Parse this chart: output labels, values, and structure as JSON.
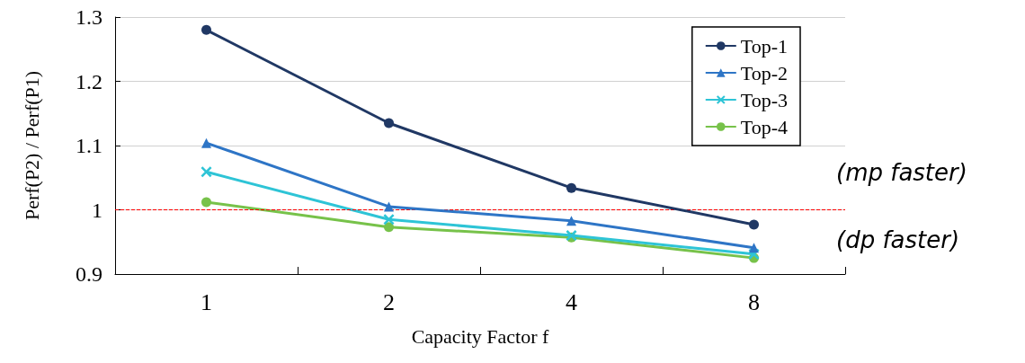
{
  "chart_data": {
    "type": "line",
    "categories": [
      "1",
      "2",
      "4",
      "8"
    ],
    "xlabel": "Capacity Factor f",
    "ylabel": "Perf(P2) / Perf(P1)",
    "ylim": [
      0.9,
      1.3
    ],
    "yticks": [
      0.9,
      1,
      1.1,
      1.2,
      1.3
    ],
    "grid": "y",
    "legend": "top right",
    "series": [
      {
        "name": "Top-1",
        "color": "#203864",
        "marker": "circle",
        "values": [
          1.28,
          1.135,
          1.034,
          0.977
        ]
      },
      {
        "name": "Top-2",
        "color": "#2e75c6",
        "marker": "triangle",
        "values": [
          1.104,
          1.005,
          0.983,
          0.941
        ]
      },
      {
        "name": "Top-3",
        "color": "#2ec4d6",
        "marker": "cross",
        "values": [
          1.059,
          0.985,
          0.96,
          0.931
        ]
      },
      {
        "name": "Top-4",
        "color": "#77c24a",
        "marker": "circle",
        "values": [
          1.012,
          0.973,
          0.957,
          0.925
        ]
      }
    ],
    "ref_lines": [
      {
        "axis": "y",
        "value": 1,
        "color": "#ff0000",
        "line_style": "dashed"
      }
    ],
    "annotations": [
      "(mp faster)",
      "(dp faster)"
    ]
  }
}
